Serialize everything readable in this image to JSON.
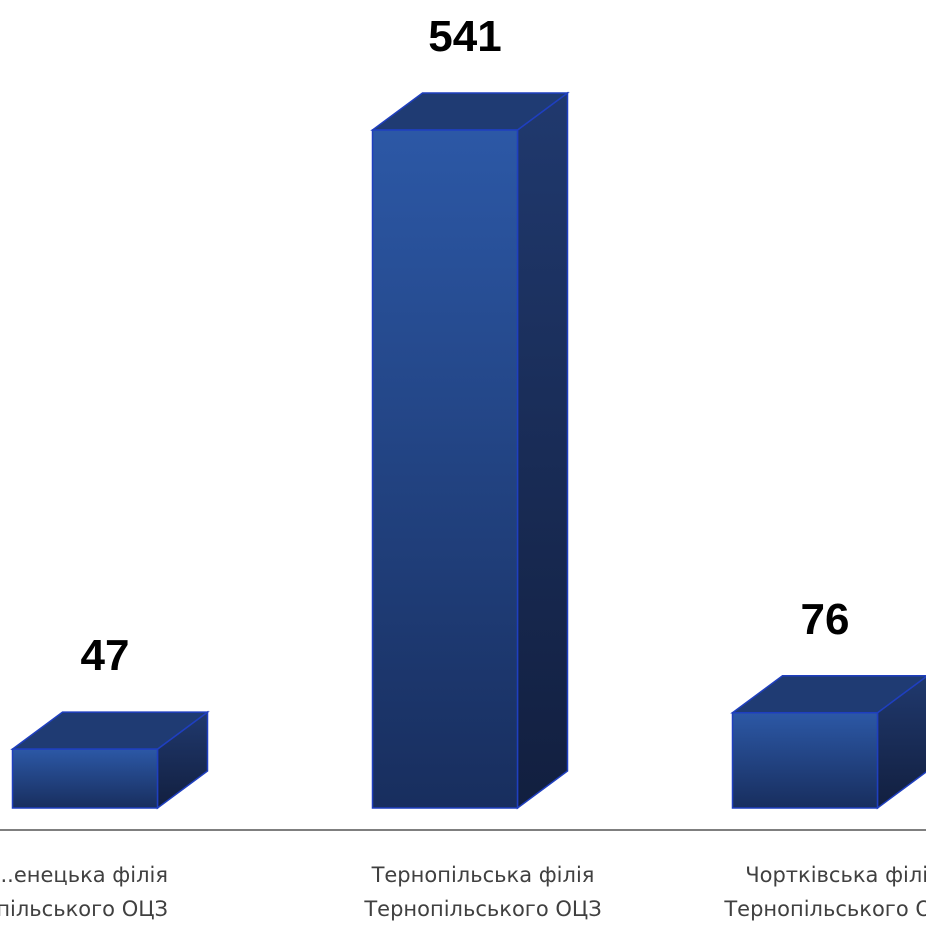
{
  "chart_data": {
    "type": "bar",
    "categories": [
      [
        "...енецька філія",
        "...пільського ОЦЗ"
      ],
      [
        "Тернопільська філія",
        "Тернопільського ОЦЗ"
      ],
      [
        "Чортківська філія",
        "Тернопільського ОЦЗ"
      ]
    ],
    "values": [
      47,
      541,
      76
    ],
    "data_labels": [
      "47",
      "541",
      "76"
    ],
    "ylim": [
      0,
      541
    ],
    "grid": false,
    "legend": "none",
    "style": "3d-column",
    "colors": {
      "front_top": "#2c58a6",
      "front_bottom": "#182e5e",
      "side": "#1a3160",
      "top": "#1f3b73",
      "edge": "#1f3fbf",
      "axis": "#7f7f7f"
    }
  }
}
